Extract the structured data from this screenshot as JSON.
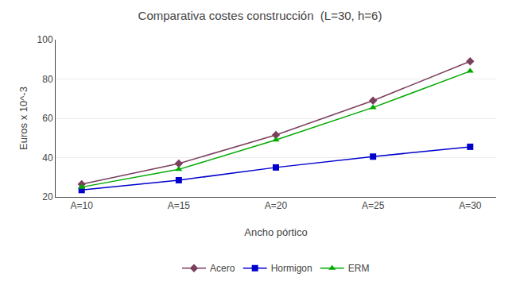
{
  "chart_data": {
    "type": "line",
    "title": "Comparativa costes construcción  (L=30, h=6)",
    "xlabel": "Ancho pórtico",
    "ylabel": "Euros x 10^-3",
    "categories": [
      "A=10",
      "A=15",
      "A=20",
      "A=25",
      "A=30"
    ],
    "series": [
      {
        "name": "Acero",
        "color": "#7B3F5E",
        "marker": "diamond",
        "values": [
          26.5,
          37.0,
          51.5,
          69.0,
          89.0
        ]
      },
      {
        "name": "Hormigon",
        "color": "#0000CC",
        "marker": "square",
        "values": [
          23.5,
          28.5,
          35.0,
          40.5,
          45.5
        ]
      },
      {
        "name": "ERM",
        "color": "#00AA00",
        "marker": "triangle-up",
        "values": [
          25.0,
          34.0,
          49.0,
          65.5,
          84.0
        ]
      }
    ],
    "ylim": [
      20,
      100
    ],
    "yticks": [
      20,
      40,
      60,
      80,
      100
    ],
    "grid": true,
    "legend": "bottom"
  }
}
